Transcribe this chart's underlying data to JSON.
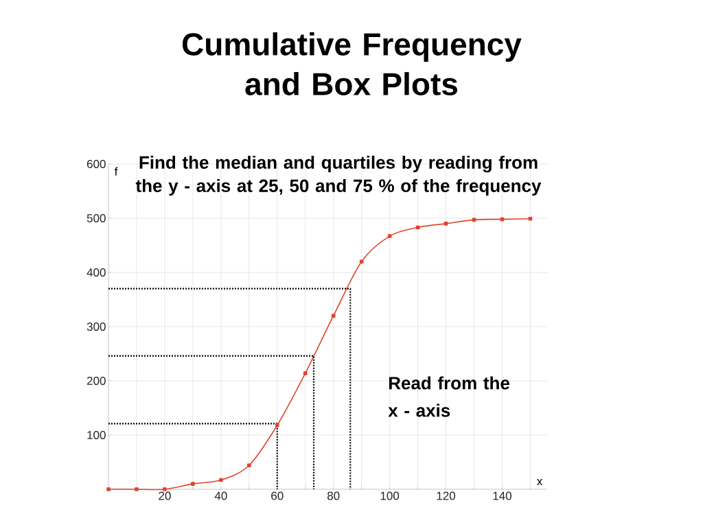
{
  "chart_data": {
    "type": "line",
    "title": "Cumulative Frequency and Box Plots",
    "xlabel": "x",
    "ylabel": "f",
    "annotations": [
      "Find the median and quartiles by reading from the y - axis at 25, 50 and 75 % of the frequency",
      "Read from the x - axis"
    ],
    "x": [
      0,
      10,
      20,
      30,
      40,
      50,
      60,
      70,
      80,
      90,
      100,
      110,
      120,
      130,
      140,
      150
    ],
    "series": [
      {
        "color": "#e0442c",
        "values": [
          0,
          0,
          0,
          10,
          17,
          44,
          118,
          214,
          320,
          420,
          467,
          483,
          490,
          497,
          498,
          499
        ]
      },
      {
        "color": "#000000",
        "x": [
          0,
          60,
          60
        ],
        "values": [
          121,
          121,
          0
        ],
        "marker": "none",
        "line_style": "dotted"
      },
      {
        "color": "#000000",
        "x": [
          0,
          73,
          73
        ],
        "values": [
          246,
          246,
          0
        ],
        "marker": "none",
        "line_style": "dotted"
      },
      {
        "color": "#000000",
        "x": [
          0,
          86,
          86
        ],
        "values": [
          370,
          370,
          0
        ],
        "marker": "none",
        "line_style": "dotted"
      }
    ],
    "xlim": [
      0,
      156
    ],
    "ylim": [
      0,
      600
    ],
    "xticks": [
      {
        "value": 10,
        "label": null
      },
      20,
      {
        "value": 30,
        "label": null
      },
      40,
      {
        "value": 50,
        "label": null
      },
      60,
      {
        "value": 70,
        "label": null
      },
      80,
      {
        "value": 90,
        "label": null
      },
      100,
      {
        "value": 110,
        "label": null
      },
      120,
      {
        "value": 130,
        "label": null
      },
      140,
      {
        "value": 150,
        "label": null
      }
    ],
    "yticks": [
      100,
      200,
      300,
      400,
      500,
      600
    ],
    "grid": true,
    "marker": "square",
    "line_style": "solid"
  }
}
